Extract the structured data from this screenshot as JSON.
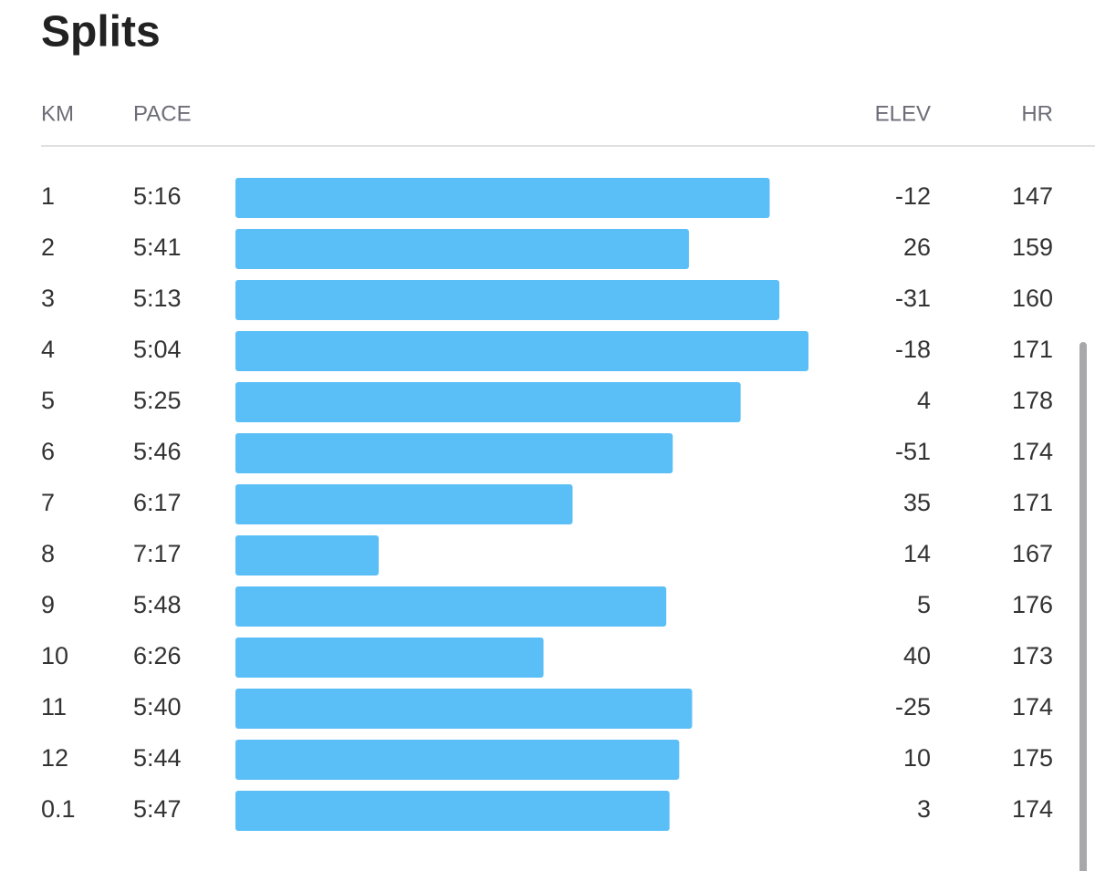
{
  "title": "Splits",
  "table": {
    "columns": [
      "KM",
      "PACE",
      "ELEV",
      "HR"
    ],
    "rows": [
      {
        "km": 1,
        "pace": {
          "value": 316,
          "label": "5:16"
        },
        "elev": -12,
        "hr": 147
      },
      {
        "km": 2,
        "pace": {
          "value": 341,
          "label": "5:41"
        },
        "elev": 26,
        "hr": 159
      },
      {
        "km": 3,
        "pace": {
          "value": 313,
          "label": "5:13"
        },
        "elev": -31,
        "hr": 160
      },
      {
        "km": 4,
        "pace": {
          "value": 304,
          "label": "5:04"
        },
        "elev": -18,
        "hr": 171
      },
      {
        "km": 5,
        "pace": {
          "value": 325,
          "label": "5:25"
        },
        "elev": 4,
        "hr": 178
      },
      {
        "km": 6,
        "pace": {
          "value": 346,
          "label": "5:46"
        },
        "elev": -51,
        "hr": 174
      },
      {
        "km": 7,
        "pace": {
          "value": 377,
          "label": "6:17"
        },
        "elev": 35,
        "hr": 171
      },
      {
        "km": 8,
        "pace": {
          "value": 437,
          "label": "7:17"
        },
        "elev": 14,
        "hr": 167
      },
      {
        "km": 9,
        "pace": {
          "value": 348,
          "label": "5:48"
        },
        "elev": 5,
        "hr": 176
      },
      {
        "km": 10,
        "pace": {
          "value": 386,
          "label": "6:26"
        },
        "elev": 40,
        "hr": 173
      },
      {
        "km": 11,
        "pace": {
          "value": 340,
          "label": "5:40"
        },
        "elev": -25,
        "hr": 174
      },
      {
        "km": 12,
        "pace": {
          "value": 344,
          "label": "5:44"
        },
        "elev": 10,
        "hr": 175
      },
      {
        "km": 0.1,
        "pace": {
          "value": 347,
          "label": "5:47"
        },
        "elev": 3,
        "hr": 174
      }
    ]
  }
}
